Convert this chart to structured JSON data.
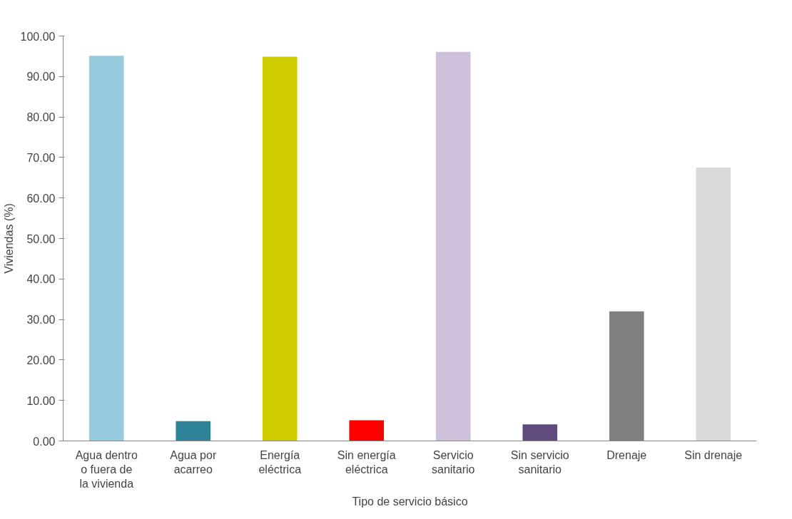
{
  "chart_data": {
    "type": "bar",
    "categories": [
      "Agua dentro o fuera de la vivienda",
      "Agua por acarreo",
      "Energía eléctrica",
      "Sin energía eléctrica",
      "Servicio sanitario",
      "Sin servicio sanitario",
      "Drenaje",
      "Sin drenaje"
    ],
    "values": [
      95.1,
      4.9,
      94.9,
      5.1,
      96.1,
      4.1,
      32.0,
      67.5
    ],
    "colors": [
      "#95cbdd",
      "#2e8398",
      "#cfcd00",
      "#ff0000",
      "#cfc1dc",
      "#5f4b7e",
      "#808080",
      "#d9d9d9"
    ],
    "xlabel": "Tipo de servicio básico",
    "ylabel": "Viviendas (%)",
    "ylim": [
      0,
      100
    ],
    "yticks": [
      {
        "value": 0,
        "label": "0.00"
      },
      {
        "value": 10,
        "label": "10.00"
      },
      {
        "value": 20,
        "label": "20.00"
      },
      {
        "value": 30,
        "label": "30.00"
      },
      {
        "value": 40,
        "label": "40.00"
      },
      {
        "value": 50,
        "label": "50.00"
      },
      {
        "value": 60,
        "label": "60.00"
      },
      {
        "value": 70,
        "label": "70.00"
      },
      {
        "value": 80,
        "label": "80.00"
      },
      {
        "value": 90,
        "label": "90.00"
      },
      {
        "value": 100,
        "label": "100.00"
      }
    ],
    "grid": false
  }
}
